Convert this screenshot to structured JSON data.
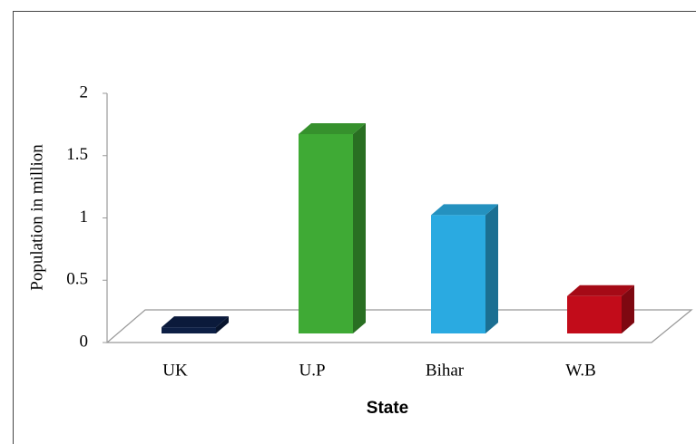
{
  "chart_data": {
    "type": "bar3d",
    "x_label": "State",
    "y_label": "Population in million",
    "categories": [
      "UK",
      "U.P",
      "Bihar",
      "W.B"
    ],
    "values": [
      0.05,
      1.6,
      0.95,
      0.3
    ],
    "colors": [
      "#0d1f45",
      "#3faa35",
      "#2aaae1",
      "#c20c1a"
    ],
    "ylim": [
      0,
      2
    ],
    "yticks": [
      0,
      0.5,
      1,
      1.5,
      2
    ]
  }
}
